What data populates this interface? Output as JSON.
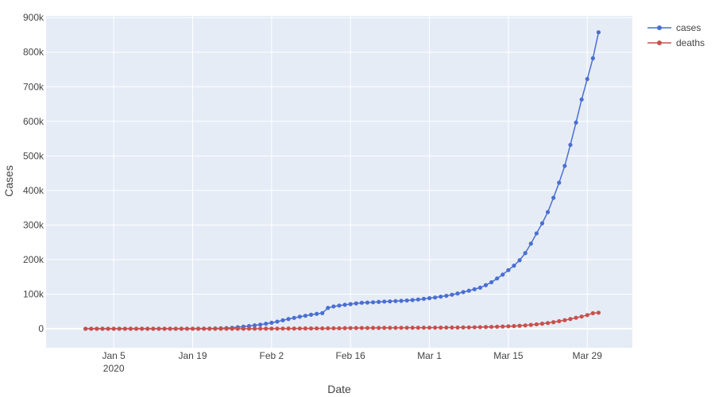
{
  "chart_data": {
    "type": "line",
    "title": "",
    "xlabel": "Date",
    "ylabel": "Cases",
    "x_start": "2019-12-31",
    "xlim": [
      "2019-12-24",
      "2020-04-06"
    ],
    "ylim": [
      -55000,
      905000
    ],
    "grid": true,
    "legend_position": "top-right, outside plot",
    "x_ticks": [
      {
        "date": "2020-01-05",
        "label": "Jan 5",
        "sublabel": "2020"
      },
      {
        "date": "2020-01-19",
        "label": "Jan 19",
        "sublabel": ""
      },
      {
        "date": "2020-02-02",
        "label": "Feb 2",
        "sublabel": ""
      },
      {
        "date": "2020-02-16",
        "label": "Feb 16",
        "sublabel": ""
      },
      {
        "date": "2020-03-01",
        "label": "Mar 1",
        "sublabel": ""
      },
      {
        "date": "2020-03-15",
        "label": "Mar 15",
        "sublabel": ""
      },
      {
        "date": "2020-03-29",
        "label": "Mar 29",
        "sublabel": ""
      }
    ],
    "y_ticks": [
      {
        "value": 0,
        "label": "0"
      },
      {
        "value": 100000,
        "label": "100k"
      },
      {
        "value": 200000,
        "label": "200k"
      },
      {
        "value": 300000,
        "label": "300k"
      },
      {
        "value": 400000,
        "label": "400k"
      },
      {
        "value": 500000,
        "label": "500k"
      },
      {
        "value": 600000,
        "label": "600k"
      },
      {
        "value": 700000,
        "label": "700k"
      },
      {
        "value": 800000,
        "label": "800k"
      },
      {
        "value": 900000,
        "label": "900k"
      }
    ],
    "series": [
      {
        "name": "cases",
        "color": "#4a6fd1",
        "values": [
          27,
          27,
          27,
          44,
          44,
          59,
          59,
          59,
          59,
          59,
          59,
          59,
          60,
          60,
          61,
          61,
          66,
          83,
          219,
          239,
          392,
          534,
          631,
          897,
          1350,
          2023,
          2820,
          4587,
          6067,
          7823,
          9826,
          11946,
          14554,
          17372,
          20615,
          24522,
          28273,
          31491,
          34933,
          37552,
          40540,
          43105,
          45177,
          60328,
          64543,
          67103,
          69265,
          71332,
          73327,
          75184,
          75700,
          76677,
          77673,
          78651,
          79205,
          80087,
          80828,
          81820,
          83112,
          84615,
          86604,
          88585,
          90443,
          93016,
          95314,
          98425,
          102050,
          106099,
          109991,
          114381,
          118948,
          126214,
          134576,
          145483,
          156653,
          169593,
          182490,
          198238,
          218822,
          246088,
          275855,
          304979,
          337459,
          378830,
          422574,
          471035,
          531865,
          596366,
          663127,
          722435,
          782365,
          857487
        ]
      },
      {
        "name": "deaths",
        "color": "#c9504b",
        "values": [
          0,
          0,
          0,
          0,
          0,
          0,
          0,
          0,
          0,
          0,
          1,
          1,
          1,
          1,
          1,
          1,
          1,
          2,
          3,
          4,
          6,
          17,
          25,
          41,
          56,
          81,
          106,
          132,
          170,
          213,
          259,
          304,
          362,
          426,
          492,
          565,
          638,
          724,
          813,
          902,
          1012,
          1112,
          1115,
          1370,
          1370,
          1370,
          1771,
          2006,
          2122,
          2247,
          2251,
          2460,
          2460,
          2618,
          2700,
          2763,
          2798,
          2858,
          2924,
          2978,
          3054,
          3129,
          3201,
          3281,
          3382,
          3494,
          3599,
          3810,
          3974,
          4266,
          4621,
          4983,
          5384,
          5859,
          6421,
          7098,
          7893,
          8736,
          9790,
          11256,
          12939,
          14778,
          16686,
          19112,
          21962,
          24837,
          28249,
          31769,
          35335,
          39588,
          45011,
          46500
        ]
      }
    ]
  }
}
